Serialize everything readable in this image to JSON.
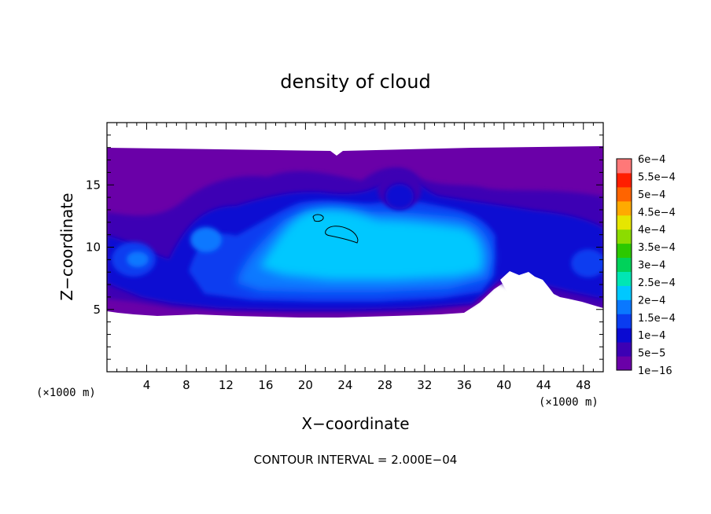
{
  "chart_data": {
    "type": "heatmap",
    "title": "density of cloud",
    "xlabel": "X−coordinate",
    "ylabel": "Z−coordinate",
    "x_unit": "(×1000 m)",
    "z_unit": "(×1000 m)",
    "xlim": [
      0,
      50
    ],
    "ylim": [
      0,
      20
    ],
    "x_ticks": [
      4,
      8,
      12,
      16,
      20,
      24,
      28,
      32,
      36,
      40,
      44,
      48
    ],
    "y_ticks": [
      5,
      10,
      15
    ],
    "contour_interval_text": "CONTOUR INTERVAL = 2.000E−04",
    "colorbar": {
      "labels": [
        "6e−4",
        "5.5e−4",
        "5e−4",
        "4.5e−4",
        "4e−4",
        "3.5e−4",
        "3e−4",
        "2.5e−4",
        "2e−4",
        "1.5e−4",
        "1e−4",
        "5e−5",
        "1e−16"
      ],
      "colors": [
        "#6a00a8",
        "#3c00b4",
        "#0a0ad2",
        "#0a3cf0",
        "#0a78ff",
        "#00c8ff",
        "#00e6b4",
        "#00d25a",
        "#2cc800",
        "#8cdc00",
        "#e6e600",
        "#ffaa00",
        "#ff6400",
        "#ff1e00",
        "#ff7878"
      ]
    },
    "field_description_levels": {
      "background_top_km": 17.8,
      "background_bottom_km": 5.0,
      "core_max_approx": 0.0002
    }
  }
}
